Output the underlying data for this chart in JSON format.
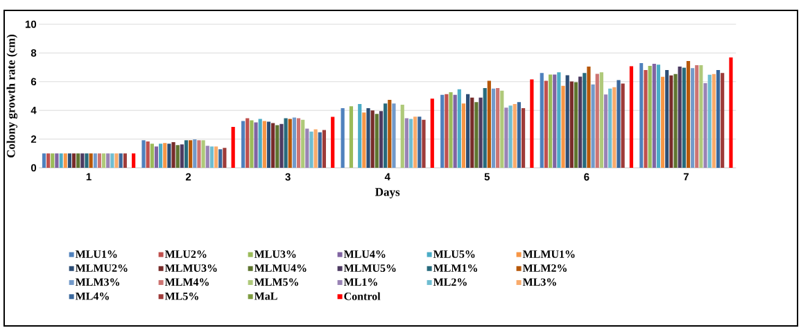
{
  "chart_data": {
    "type": "bar",
    "xlabel": "Days",
    "ylabel": "Colony growth rate (cm)",
    "categories": [
      "1",
      "2",
      "3",
      "4",
      "5",
      "6",
      "7"
    ],
    "ylim": [
      0,
      10
    ],
    "yticks": [
      0,
      2,
      4,
      6,
      8,
      10
    ],
    "grid": "y",
    "legend": "bottom",
    "series": [
      {
        "name": "MLU1%",
        "color": "#4f81bd",
        "values": [
          1,
          1.92,
          3.26,
          4.15,
          5.08,
          6.6,
          7.29
        ]
      },
      {
        "name": "MLU2%",
        "color": "#c0504d",
        "values": [
          1,
          1.84,
          3.45,
          null,
          5.13,
          6.06,
          6.81
        ]
      },
      {
        "name": "MLU3%",
        "color": "#9bbb59",
        "values": [
          1,
          1.68,
          3.31,
          4.29,
          5.27,
          6.5,
          7.1
        ]
      },
      {
        "name": "MLU4%",
        "color": "#8064a2",
        "values": [
          1,
          1.48,
          3.16,
          null,
          5.08,
          6.5,
          7.24
        ]
      },
      {
        "name": "MLU5%",
        "color": "#4bacc6",
        "values": [
          1,
          1.68,
          3.4,
          4.44,
          5.47,
          6.65,
          7.19
        ]
      },
      {
        "name": "MLMU1%",
        "color": "#f79646",
        "values": [
          1,
          1.73,
          3.26,
          3.85,
          4.48,
          5.71,
          6.35
        ]
      },
      {
        "name": "MLMU2%",
        "color": "#2c4d75",
        "values": [
          1,
          1.68,
          3.21,
          4.15,
          5.13,
          6.45,
          6.81
        ]
      },
      {
        "name": "MLMU3%",
        "color": "#772c2a",
        "values": [
          1,
          1.79,
          3.11,
          4.0,
          4.89,
          6.02,
          6.45
        ]
      },
      {
        "name": "MLMU4%",
        "color": "#5f7530",
        "values": [
          1,
          1.58,
          2.97,
          3.76,
          4.58,
          5.97,
          6.55
        ]
      },
      {
        "name": "MLMU5%",
        "color": "#4d3b62",
        "values": [
          1,
          1.63,
          3.06,
          3.95,
          4.89,
          6.35,
          7.05
        ]
      },
      {
        "name": "MLM1%",
        "color": "#276a7c",
        "values": [
          1,
          1.92,
          3.45,
          4.48,
          5.56,
          6.6,
          6.98
        ]
      },
      {
        "name": "MLM2%",
        "color": "#b65708",
        "values": [
          1,
          1.92,
          3.4,
          4.73,
          6.06,
          7.05,
          7.44
        ]
      },
      {
        "name": "MLM3%",
        "color": "#729aca",
        "values": [
          1,
          1.98,
          3.5,
          4.48,
          5.52,
          5.81,
          6.94
        ]
      },
      {
        "name": "MLM4%",
        "color": "#cd7371",
        "values": [
          1,
          1.92,
          3.45,
          null,
          5.56,
          6.55,
          7.15
        ]
      },
      {
        "name": "MLM5%",
        "color": "#afc97a",
        "values": [
          1,
          1.92,
          3.35,
          4.39,
          5.37,
          6.65,
          7.15
        ]
      },
      {
        "name": "ML1%",
        "color": "#9983b5",
        "values": [
          1,
          1.53,
          2.73,
          3.45,
          4.19,
          5.11,
          5.9
        ]
      },
      {
        "name": "ML2%",
        "color": "#6fbdd1",
        "values": [
          1,
          1.48,
          2.52,
          3.4,
          4.34,
          5.52,
          6.5
        ]
      },
      {
        "name": "ML3%",
        "color": "#f9ab6b",
        "values": [
          1,
          1.48,
          2.68,
          3.56,
          4.44,
          5.61,
          6.55
        ]
      },
      {
        "name": "ML4%",
        "color": "#3a679c",
        "values": [
          1,
          1.29,
          2.47,
          3.56,
          4.58,
          6.11,
          6.81
        ]
      },
      {
        "name": "ML5%",
        "color": "#9e3b39",
        "values": [
          1,
          1.39,
          2.63,
          3.35,
          4.15,
          5.87,
          6.6
        ]
      },
      {
        "name": "MaL",
        "color": "#7e9c40",
        "values": [
          null,
          null,
          null,
          null,
          null,
          null,
          null
        ]
      },
      {
        "name": "Control",
        "color": "#ff0000",
        "values": [
          1,
          2.85,
          3.55,
          4.82,
          6.16,
          7.08,
          7.69
        ]
      }
    ]
  }
}
